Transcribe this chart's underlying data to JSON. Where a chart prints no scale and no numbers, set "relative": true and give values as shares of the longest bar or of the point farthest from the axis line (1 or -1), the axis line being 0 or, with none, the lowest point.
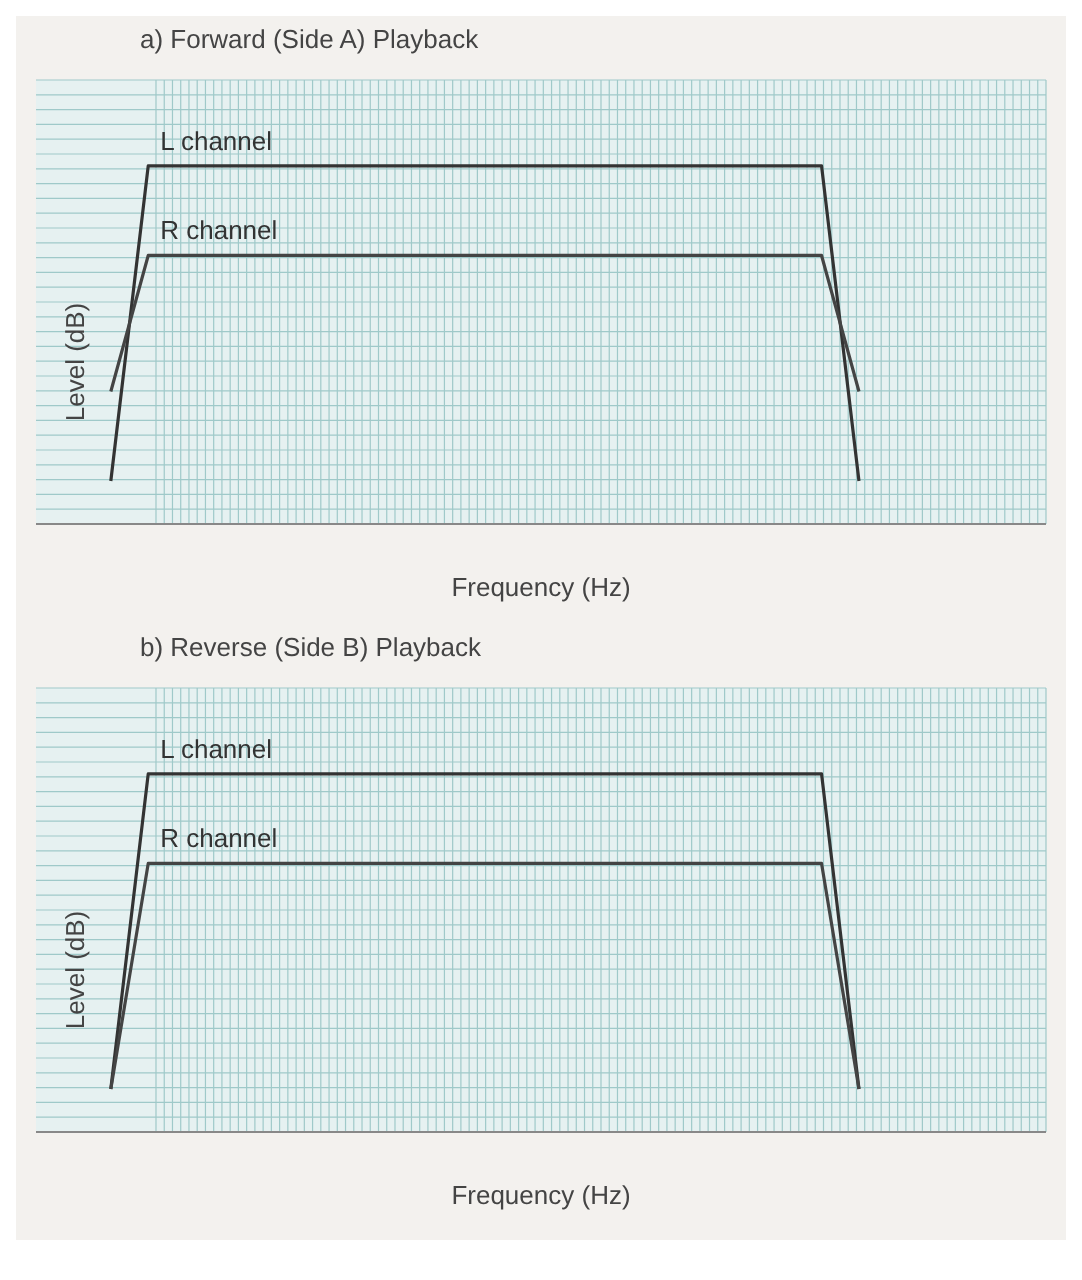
{
  "chart_data": [
    {
      "type": "line",
      "title": "a) Forward (Side A) Playback",
      "xlabel": "Frequency (Hz)",
      "ylabel": "Level (dB)",
      "relative": true,
      "grid": true,
      "legend": false,
      "tick_labels": false,
      "categories": [
        null,
        null,
        null,
        null,
        null,
        null,
        null,
        null,
        null,
        null,
        null,
        null,
        null,
        null,
        null,
        null,
        null,
        null,
        null,
        null,
        null,
        null,
        null,
        null,
        null,
        null,
        null,
        null
      ],
      "series": [
        {
          "name": "L channel",
          "color": "#333333",
          "values": [
            null,
            null,
            0.12,
            1,
            1,
            1,
            1,
            1,
            1,
            1,
            1,
            1,
            1,
            1,
            1,
            1,
            1,
            1,
            1,
            1,
            1,
            1,
            0.12,
            null,
            null,
            null,
            null,
            null
          ]
        },
        {
          "name": "R channel",
          "color": "#444444",
          "values": [
            null,
            null,
            0.37,
            0.75,
            0.75,
            0.75,
            0.75,
            0.75,
            0.75,
            0.75,
            0.75,
            0.75,
            0.75,
            0.75,
            0.75,
            0.75,
            0.75,
            0.75,
            0.75,
            0.75,
            0.75,
            0.75,
            0.37,
            null,
            null,
            null,
            null,
            null
          ]
        }
      ]
    },
    {
      "type": "line",
      "title": "b) Reverse (Side B) Playback",
      "xlabel": "Frequency (Hz)",
      "ylabel": "Level (dB)",
      "relative": true,
      "grid": true,
      "legend": false,
      "tick_labels": false,
      "categories": [
        null,
        null,
        null,
        null,
        null,
        null,
        null,
        null,
        null,
        null,
        null,
        null,
        null,
        null,
        null,
        null,
        null,
        null,
        null,
        null,
        null,
        null,
        null,
        null,
        null,
        null,
        null,
        null
      ],
      "series": [
        {
          "name": "L channel",
          "color": "#333333",
          "values": [
            null,
            null,
            0.12,
            1,
            1,
            1,
            1,
            1,
            1,
            1,
            1,
            1,
            1,
            1,
            1,
            1,
            1,
            1,
            1,
            1,
            1,
            1,
            0.12,
            null,
            null,
            null,
            null,
            null
          ]
        },
        {
          "name": "R channel",
          "color": "#444444",
          "values": [
            null,
            null,
            0.12,
            0.75,
            0.75,
            0.75,
            0.75,
            0.75,
            0.75,
            0.75,
            0.75,
            0.75,
            0.75,
            0.75,
            0.75,
            0.75,
            0.75,
            0.75,
            0.75,
            0.75,
            0.75,
            0.75,
            0.12,
            null,
            null,
            null,
            null,
            null
          ]
        }
      ]
    }
  ]
}
